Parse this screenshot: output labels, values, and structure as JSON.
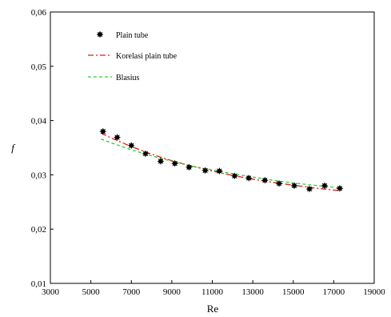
{
  "chart_data": {
    "type": "scatter",
    "title": "",
    "xlabel": "Re",
    "ylabel": "f",
    "xlim": [
      3000,
      19000
    ],
    "ylim": [
      0.01,
      0.06
    ],
    "x_ticks": [
      3000,
      5000,
      7000,
      9000,
      11000,
      13000,
      15000,
      17000,
      19000
    ],
    "x_tick_labels": [
      "3000",
      "5000",
      "7000",
      "9000",
      "11000",
      "13000",
      "15000",
      "17000",
      "19000"
    ],
    "y_ticks": [
      0.01,
      0.02,
      0.03,
      0.04,
      0.05,
      0.06
    ],
    "y_tick_labels": [
      "0,01",
      "0,02",
      "0,03",
      "0,04",
      "0,05",
      "0,06"
    ],
    "grid": false,
    "legend_position": "top-left",
    "series": [
      {
        "name": "Plain tube",
        "kind": "markers",
        "marker": "star",
        "color": "#000000",
        "x": [
          5600,
          6300,
          7000,
          7700,
          8450,
          9150,
          9850,
          10650,
          11350,
          12100,
          12800,
          13600,
          14300,
          15050,
          15800,
          16550,
          17300
        ],
        "y": [
          0.038,
          0.0369,
          0.0354,
          0.0339,
          0.0325,
          0.0321,
          0.0314,
          0.0308,
          0.0307,
          0.0298,
          0.0294,
          0.029,
          0.0284,
          0.028,
          0.0274,
          0.028,
          0.0275
        ]
      },
      {
        "name": "Korelasi plain tube",
        "kind": "line",
        "dash": "dash-dot",
        "color": "#e31a1c",
        "x": [
          5500,
          6000,
          7000,
          8000,
          9000,
          10000,
          11000,
          12000,
          13000,
          14000,
          15000,
          16000,
          17000,
          17300
        ],
        "y": [
          0.0377,
          0.0368,
          0.0352,
          0.0338,
          0.0326,
          0.0316,
          0.0307,
          0.0299,
          0.0292,
          0.0286,
          0.0281,
          0.0276,
          0.0272,
          0.0271
        ]
      },
      {
        "name": "Blasius",
        "kind": "line",
        "dash": "dash",
        "color": "#33cc33",
        "x": [
          5500,
          6000,
          7000,
          8000,
          9000,
          10000,
          11000,
          12000,
          13000,
          14000,
          15000,
          16000,
          17000,
          17300
        ],
        "y": [
          0.0366,
          0.0359,
          0.0346,
          0.0335,
          0.0325,
          0.0316,
          0.0309,
          0.0302,
          0.0296,
          0.029,
          0.0285,
          0.0281,
          0.0277,
          0.0276
        ]
      }
    ]
  }
}
